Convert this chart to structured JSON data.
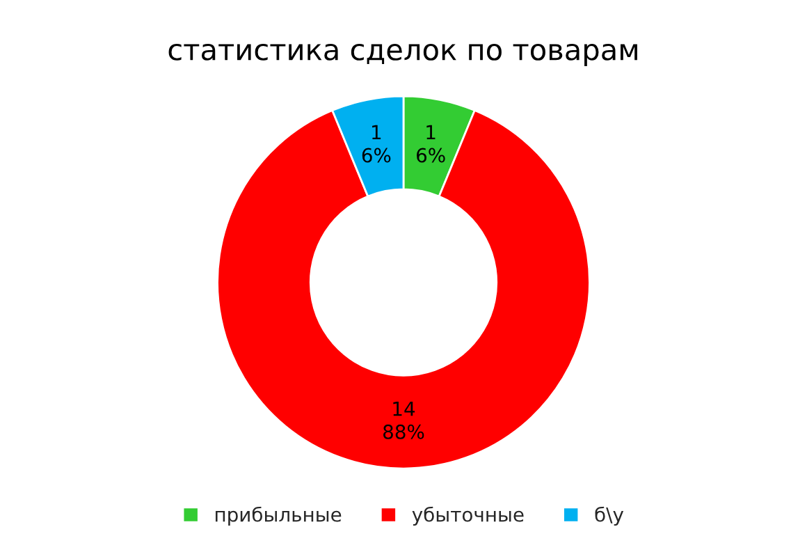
{
  "chart_data": {
    "type": "donut",
    "title": "статистика сделок по товарам",
    "categories": [
      "прибыльные",
      "убыточные",
      "б\\у"
    ],
    "values": [
      1,
      14,
      1
    ],
    "colors": [
      "#33cc33",
      "#ff0000",
      "#00b0f0"
    ],
    "value_labels": [
      "1\n6%",
      "14\n88%",
      "1\n6%"
    ],
    "legend": "bottom"
  }
}
